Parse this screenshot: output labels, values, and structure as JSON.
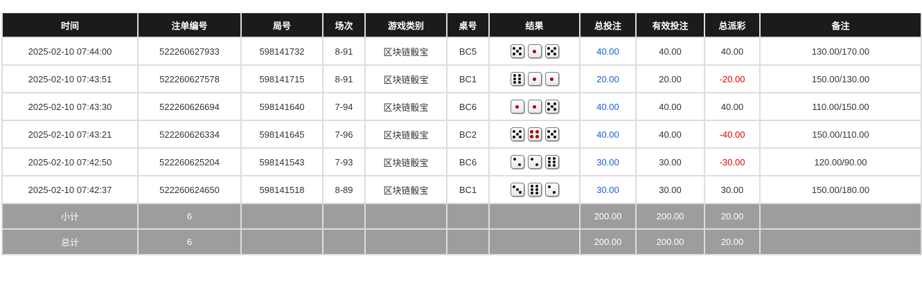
{
  "headers": [
    "时间",
    "注单编号",
    "局号",
    "场次",
    "游戏类别",
    "桌号",
    "结果",
    "总投注",
    "有效投注",
    "总派彩",
    "备注"
  ],
  "rows": [
    {
      "time": "2025-02-10 07:44:00",
      "bet_id": "522260627933",
      "round": "598141732",
      "session": "8-91",
      "game": "区块链骰宝",
      "table": "BC5",
      "dice": [
        5,
        1,
        5
      ],
      "total_bet": "40.00",
      "valid_bet": "40.00",
      "payout": "40.00",
      "payout_negative": false,
      "note": "130.00/170.00"
    },
    {
      "time": "2025-02-10 07:43:51",
      "bet_id": "522260627578",
      "round": "598141715",
      "session": "8-91",
      "game": "区块链骰宝",
      "table": "BC1",
      "dice": [
        6,
        1,
        1
      ],
      "total_bet": "20.00",
      "valid_bet": "20.00",
      "payout": "-20.00",
      "payout_negative": true,
      "note": "150.00/130.00"
    },
    {
      "time": "2025-02-10 07:43:30",
      "bet_id": "522260626694",
      "round": "598141640",
      "session": "7-94",
      "game": "区块链骰宝",
      "table": "BC6",
      "dice": [
        1,
        1,
        5
      ],
      "total_bet": "40.00",
      "valid_bet": "40.00",
      "payout": "40.00",
      "payout_negative": false,
      "note": "110.00/150.00"
    },
    {
      "time": "2025-02-10 07:43:21",
      "bet_id": "522260626334",
      "round": "598141645",
      "session": "7-96",
      "game": "区块链骰宝",
      "table": "BC2",
      "dice": [
        5,
        4,
        5
      ],
      "total_bet": "40.00",
      "valid_bet": "40.00",
      "payout": "-40.00",
      "payout_negative": true,
      "note": "150.00/110.00"
    },
    {
      "time": "2025-02-10 07:42:50",
      "bet_id": "522260625204",
      "round": "598141543",
      "session": "7-93",
      "game": "区块链骰宝",
      "table": "BC6",
      "dice": [
        2,
        2,
        6
      ],
      "total_bet": "30.00",
      "valid_bet": "30.00",
      "payout": "-30.00",
      "payout_negative": true,
      "note": "120.00/90.00"
    },
    {
      "time": "2025-02-10 07:42:37",
      "bet_id": "522260624650",
      "round": "598141518",
      "session": "8-89",
      "game": "区块链骰宝",
      "table": "BC1",
      "dice": [
        3,
        6,
        2
      ],
      "total_bet": "30.00",
      "valid_bet": "30.00",
      "payout": "30.00",
      "payout_negative": false,
      "note": "150.00/180.00"
    }
  ],
  "subtotal": {
    "label": "小计",
    "count": "6",
    "total_bet": "200.00",
    "valid_bet": "200.00",
    "payout": "20.00"
  },
  "total": {
    "label": "总计",
    "count": "6",
    "total_bet": "200.00",
    "valid_bet": "200.00",
    "payout": "20.00"
  },
  "colors": {
    "header_bg": "#1b1b1b",
    "summary_bg": "#9d9d9d",
    "bet_blue": "#1a5fd0",
    "negative_red": "#e00000",
    "pip_red": "#b00000"
  }
}
